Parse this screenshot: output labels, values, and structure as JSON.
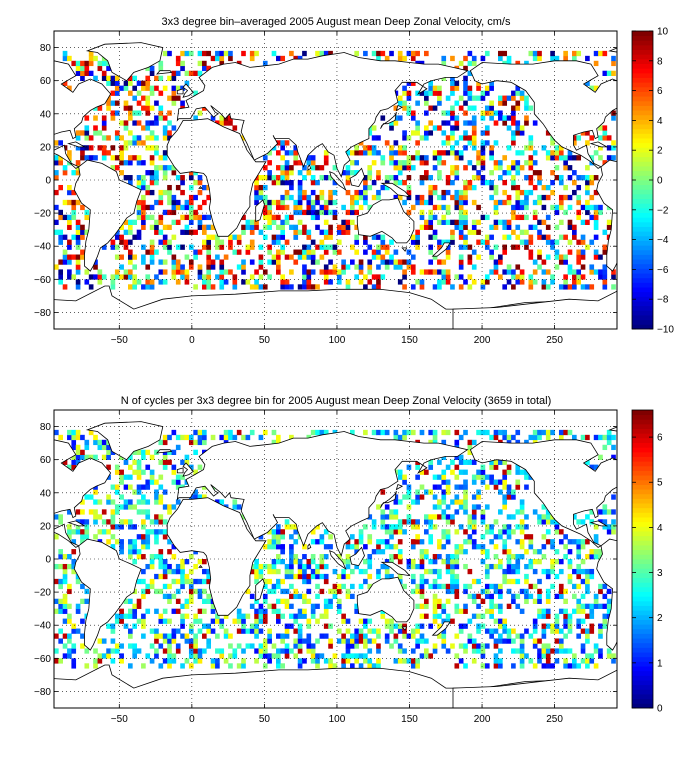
{
  "chart_data": [
    {
      "type": "heatmap",
      "title": "3x3 degree bin–averaged 2005 August mean Deep Zonal Velocity, cm/s",
      "xlabel": "",
      "ylabel": "",
      "xlim": [
        -95,
        293
      ],
      "ylim": [
        -90,
        90
      ],
      "xticks": [
        -50,
        0,
        50,
        100,
        150,
        200,
        250
      ],
      "yticks": [
        -80,
        -60,
        -40,
        -20,
        0,
        20,
        40,
        60,
        80
      ],
      "grid": true,
      "bin_size_deg": 3,
      "colorbar": {
        "min": -10,
        "max": 10,
        "ticks": [
          -10,
          -8,
          -6,
          -4,
          -2,
          0,
          2,
          4,
          6,
          8,
          10
        ],
        "colormap": "jet"
      },
      "mean_cell_value": 0,
      "value_spread": 4.5
    },
    {
      "type": "heatmap",
      "title": "N of cycles per 3x3 degree bin for 2005 August mean Deep Zonal Velocity (3659 in total)",
      "xlabel": "",
      "ylabel": "",
      "xlim": [
        -95,
        293
      ],
      "ylim": [
        -90,
        90
      ],
      "xticks": [
        -50,
        0,
        50,
        100,
        150,
        200,
        250
      ],
      "yticks": [
        -80,
        -60,
        -40,
        -20,
        0,
        20,
        40,
        60,
        80
      ],
      "grid": true,
      "bin_size_deg": 3,
      "total_cycles": 3659,
      "colorbar": {
        "min": 0,
        "max": 6.6,
        "ticks": [
          0,
          1,
          2,
          3,
          4,
          5,
          6
        ],
        "colormap": "jet"
      },
      "mean_cell_value": 2.2,
      "value_spread": 1.6
    }
  ]
}
